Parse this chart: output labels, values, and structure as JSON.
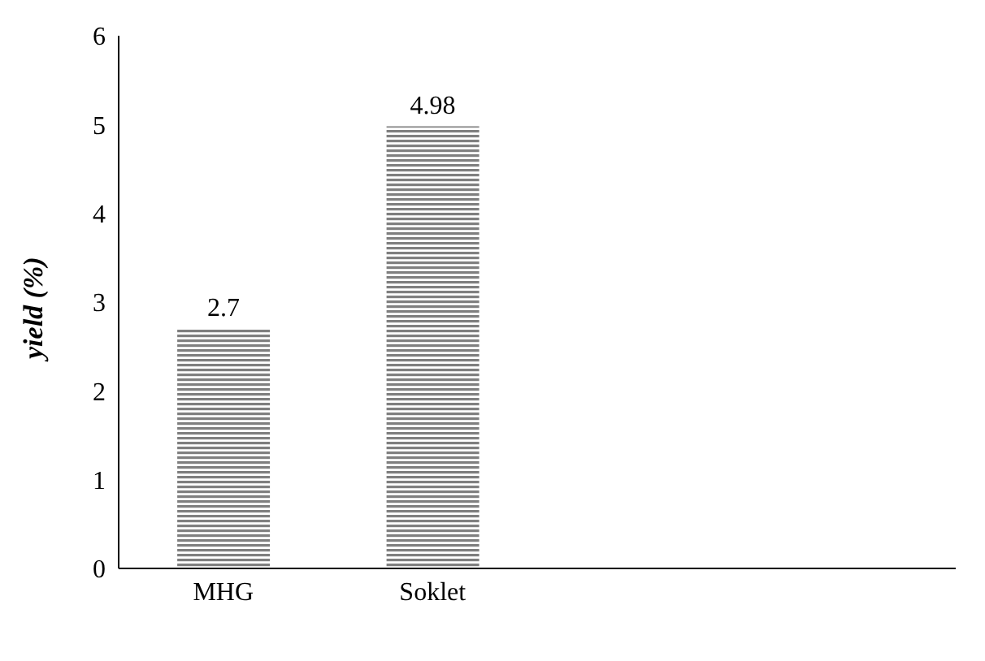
{
  "chart_data": {
    "type": "bar",
    "ylabel": "yield (%)",
    "categories": [
      "MHG",
      "Soklet",
      null,
      null
    ],
    "series": [
      {
        "color": "#7f7f7f",
        "values": [
          2.7,
          4.98,
          null,
          null
        ]
      }
    ],
    "ylim": [
      0,
      6
    ],
    "yticks": [
      0,
      1,
      2,
      3,
      4,
      5,
      6
    ],
    "grid": false,
    "legend": false,
    "data_labels": true
  }
}
